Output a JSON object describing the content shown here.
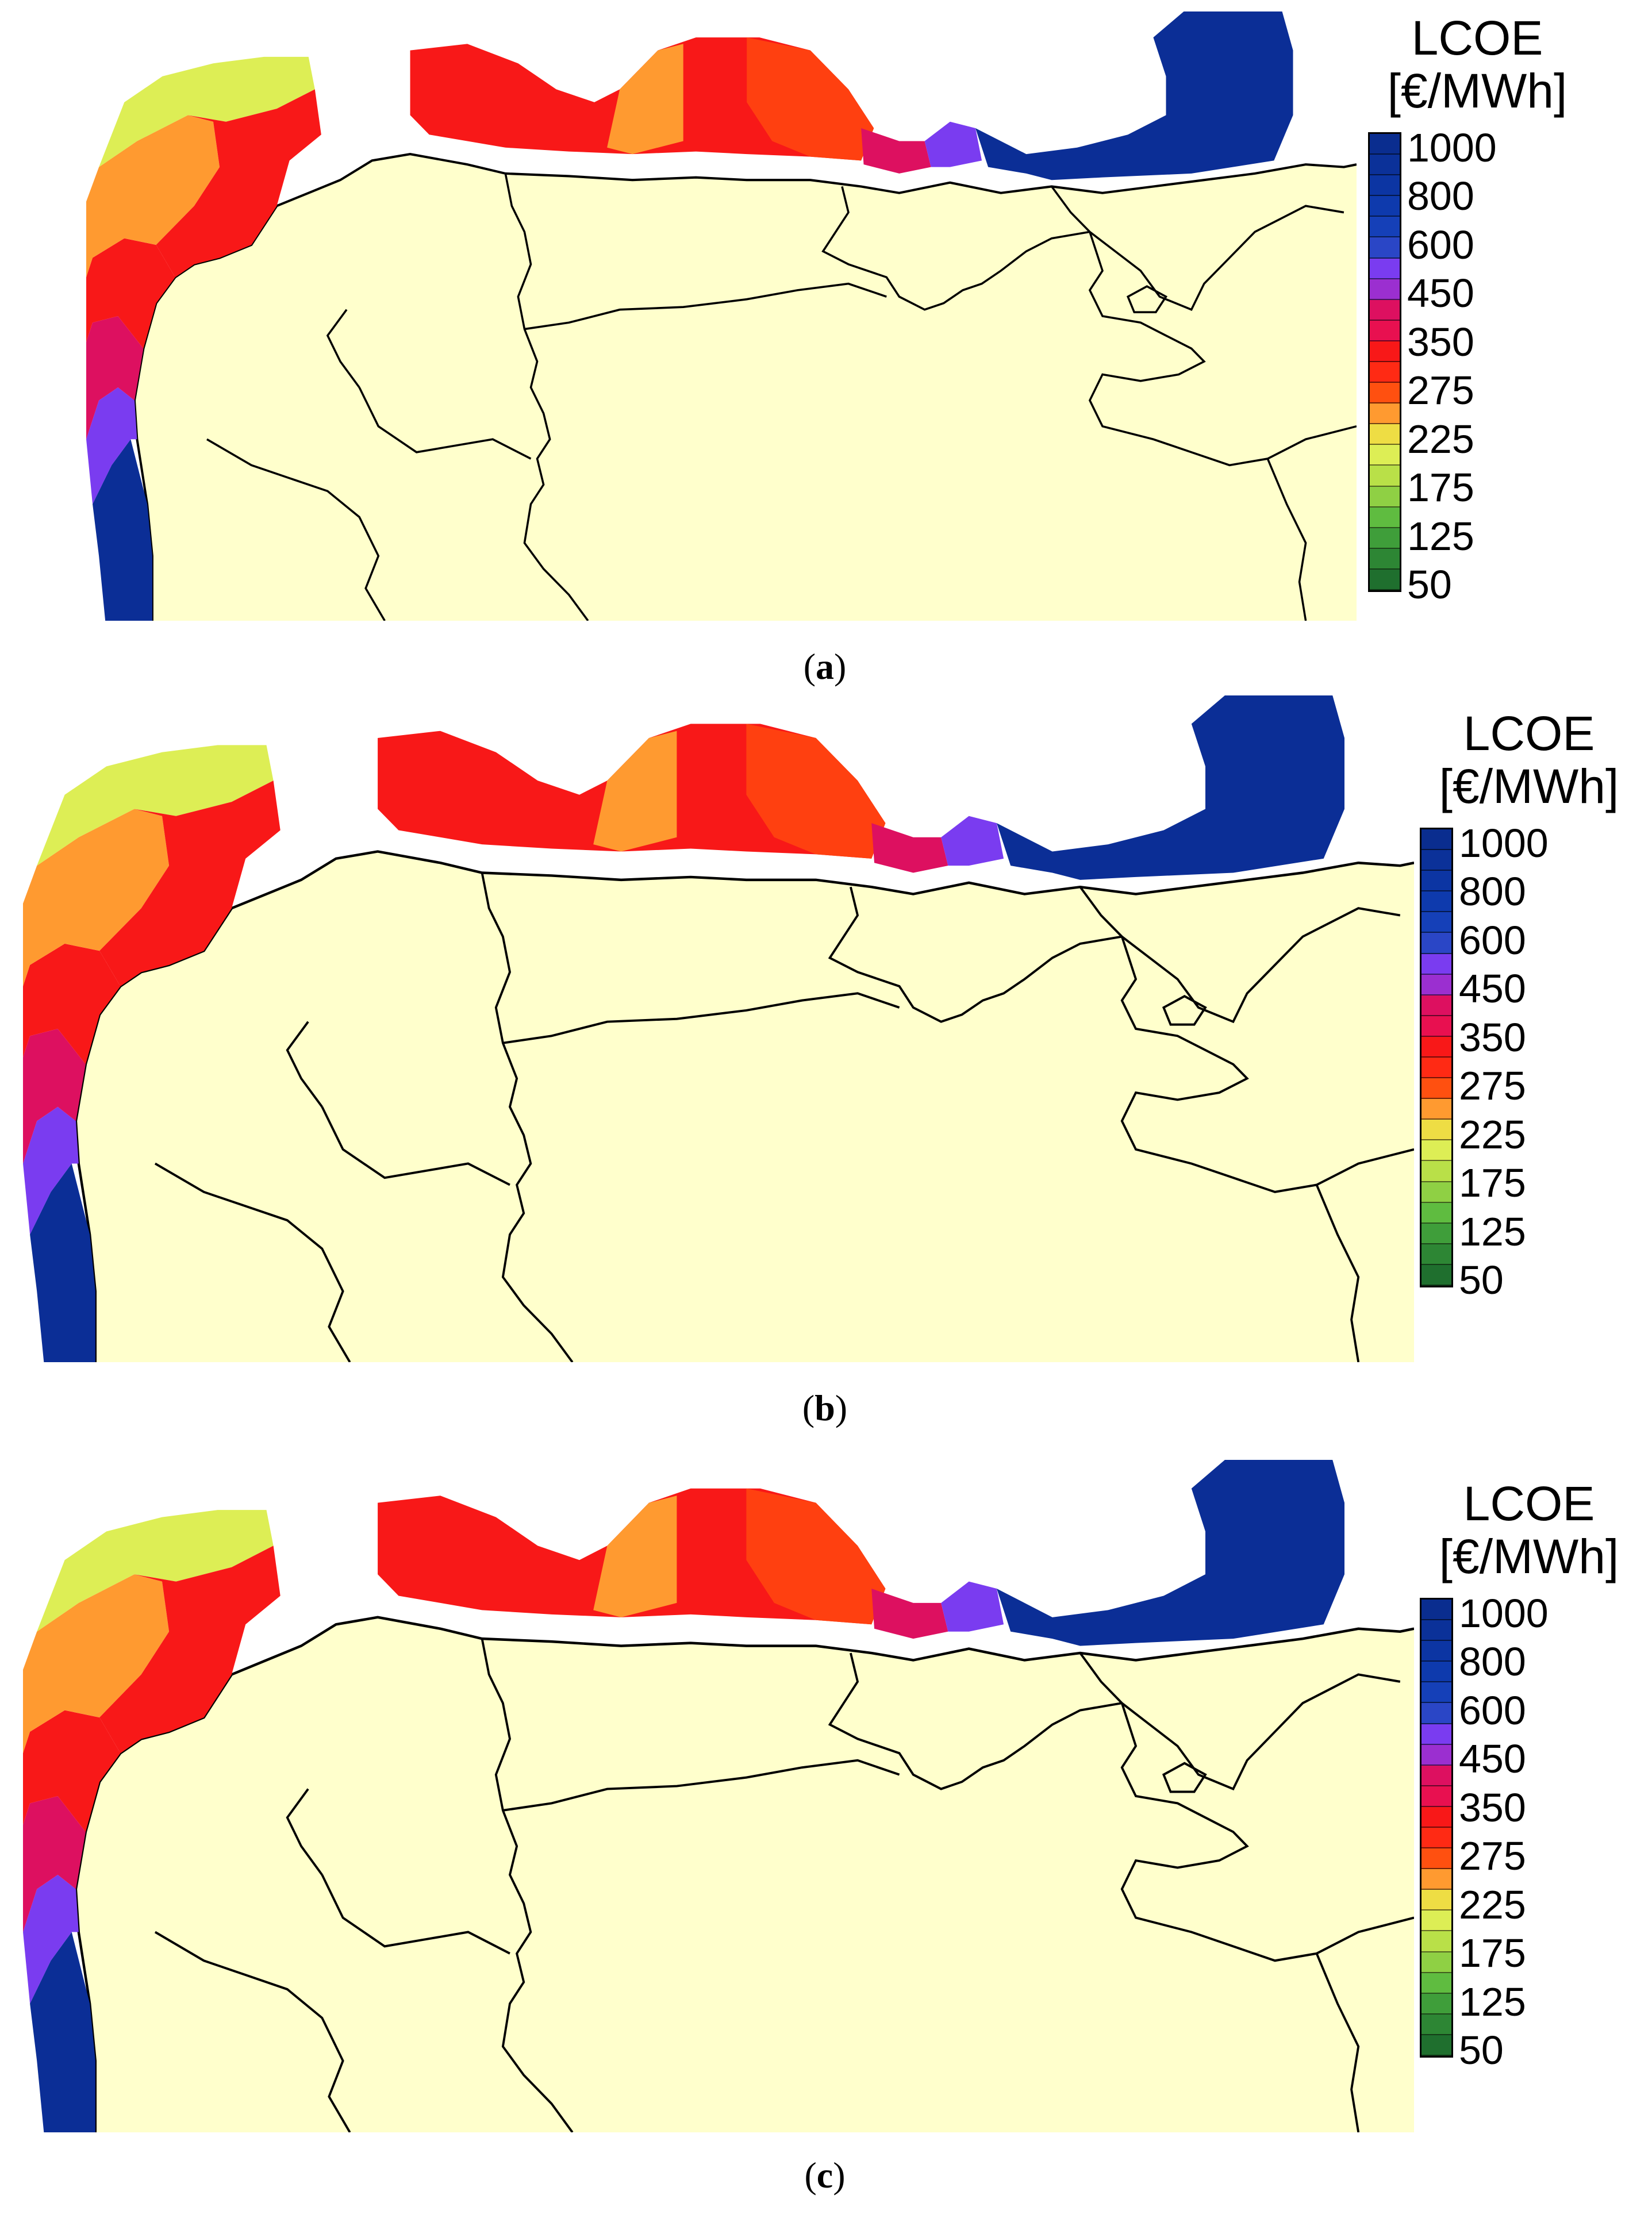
{
  "colors": {
    "land": "#ffffcc",
    "border": "#000000",
    "band_1000": "#0b2e96",
    "band_800": "#0a34a3",
    "band_600": "#113fb0",
    "band_450": "#7a3cf0",
    "band_350": "#dd1060",
    "band_275": "#f81818",
    "band_225": "#ff4010",
    "band_200": "#ff9a30",
    "band_175": "#ddee55",
    "band_150": "#a8d848",
    "band_125": "#4caf3e",
    "band_50": "#1f6f2e"
  },
  "legend": {
    "title_line1": "LCOE",
    "title_line2": "[€/MWh]",
    "ticks": [
      "1000",
      "800",
      "600",
      "450",
      "350",
      "275",
      "225",
      "175",
      "125",
      "50"
    ],
    "swatch_colors": [
      "#0a2d8f",
      "#0b3199",
      "#0c35a3",
      "#0e3aad",
      "#1540b8",
      "#2a46c6",
      "#7a3cf0",
      "#9b2fd0",
      "#dd1060",
      "#e81050",
      "#f81818",
      "#ff2a14",
      "#ff5010",
      "#ff9a30",
      "#eedd44",
      "#ddee55",
      "#b9e048",
      "#8fd044",
      "#5fbc40",
      "#3f9e3a",
      "#2d8634",
      "#1f6f2e"
    ]
  },
  "panels": [
    {
      "id": "a",
      "caption_open": "(",
      "caption_letter": "a",
      "caption_close": ")"
    },
    {
      "id": "b",
      "caption_open": "(",
      "caption_letter": "b",
      "caption_close": ")"
    },
    {
      "id": "c",
      "caption_open": "(",
      "caption_letter": "c",
      "caption_close": ")"
    }
  ]
}
